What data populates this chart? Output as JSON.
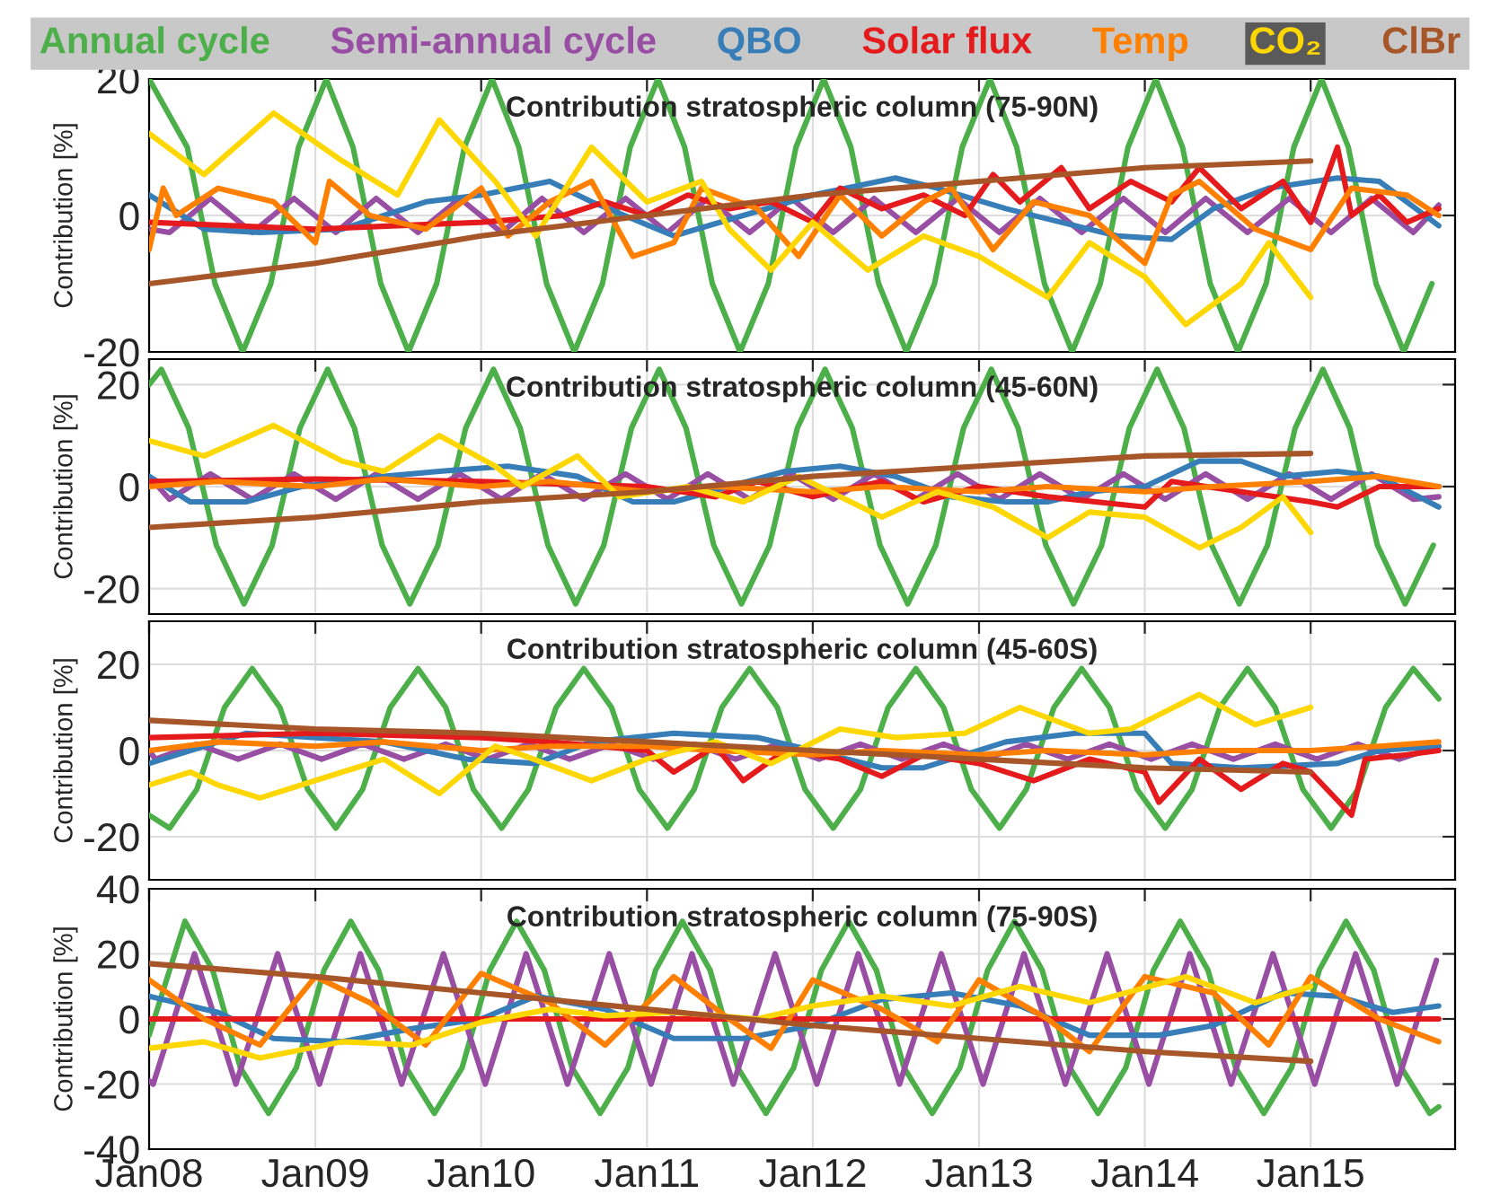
{
  "chart_data": [
    {
      "type": "line",
      "title": "Contribution stratospheric column (75-90N)",
      "ylabel": "Contribution [%]",
      "xlim": [
        "2008-01-01",
        "2015-11-15"
      ],
      "xticks": [
        "2008-01-01",
        "2009-01-01",
        "2010-01-01",
        "2011-01-01",
        "2012-01-01",
        "2013-01-01",
        "2014-01-01",
        "2015-01-01"
      ],
      "ylim": [
        -20,
        20
      ],
      "yticks": [
        -20,
        0,
        20
      ],
      "grid": true,
      "legend": "top",
      "tick_labels": "y",
      "series": [
        {
          "name": "Annual cycle",
          "color": "#4daf4a",
          "x": [
            "2008-01-01",
            "2008-03-25",
            "2008-05-25",
            "2008-07-25",
            "2008-09-25",
            "2008-11-25",
            "2009-01-25",
            "2009-03-25",
            "2009-05-25",
            "2009-07-25",
            "2009-09-25",
            "2009-11-25",
            "2010-01-25",
            "2010-03-25",
            "2010-05-25",
            "2010-07-25",
            "2010-09-25",
            "2010-11-25",
            "2011-01-25",
            "2011-03-25",
            "2011-05-25",
            "2011-07-25",
            "2011-09-25",
            "2011-11-25",
            "2012-01-25",
            "2012-03-25",
            "2012-05-25",
            "2012-07-25",
            "2012-09-25",
            "2012-11-25",
            "2013-01-25",
            "2013-03-25",
            "2013-05-25",
            "2013-07-25",
            "2013-09-25",
            "2013-11-25",
            "2014-01-25",
            "2014-03-25",
            "2014-05-25",
            "2014-07-25",
            "2014-09-25",
            "2014-11-25",
            "2015-01-25",
            "2015-03-25",
            "2015-05-25",
            "2015-07-25",
            "2015-09-25"
          ],
          "values": [
            20,
            10,
            -10,
            -20,
            -10,
            10,
            20,
            10,
            -10,
            -20,
            -10,
            10,
            20,
            10,
            -10,
            -20,
            -10,
            10,
            20,
            10,
            -10,
            -20,
            -10,
            10,
            20,
            10,
            -10,
            -20,
            -10,
            10,
            20,
            10,
            -10,
            -20,
            -10,
            10,
            20,
            10,
            -10,
            -20,
            -10,
            10,
            20,
            10,
            -10,
            -20,
            -10
          ]
        },
        {
          "name": "Semi-annual cycle",
          "color": "#984ea3",
          "x": [
            "2008-01-01",
            "2008-02-15",
            "2008-05-15",
            "2008-08-15",
            "2008-11-15",
            "2009-02-15",
            "2009-05-15",
            "2009-08-15",
            "2009-11-15",
            "2010-02-15",
            "2010-05-15",
            "2010-08-15",
            "2010-11-15",
            "2011-02-15",
            "2011-05-15",
            "2011-08-15",
            "2011-11-15",
            "2012-02-15",
            "2012-05-15",
            "2012-08-15",
            "2012-11-15",
            "2013-02-15",
            "2013-05-15",
            "2013-08-15",
            "2013-11-15",
            "2014-02-15",
            "2014-05-15",
            "2014-08-15",
            "2014-11-15",
            "2015-02-15",
            "2015-05-15",
            "2015-08-15",
            "2015-10-10"
          ],
          "values": [
            -2,
            -2.5,
            2.5,
            -2.5,
            2.5,
            -2.5,
            2.5,
            -2.5,
            2.5,
            -2.5,
            2.5,
            -2.5,
            2.5,
            -2.5,
            2.5,
            -2.5,
            2.5,
            -2.5,
            2.5,
            -2.5,
            2.5,
            -2.5,
            2.5,
            -2.5,
            2.5,
            -2.5,
            2.5,
            -2.5,
            2.5,
            -2.5,
            2.5,
            -2.5,
            1.5
          ]
        },
        {
          "name": "QBO",
          "color": "#377eb8",
          "x": [
            "2008-01-01",
            "2008-05-01",
            "2008-09-01",
            "2009-03-01",
            "2009-06-01",
            "2009-09-01",
            "2010-01-01",
            "2010-06-01",
            "2010-09-01",
            "2011-03-01",
            "2011-08-01",
            "2012-01-01",
            "2012-07-01",
            "2012-10-01",
            "2013-03-01",
            "2013-07-01",
            "2013-11-01",
            "2014-03-01",
            "2014-06-01",
            "2014-10-01",
            "2015-03-01",
            "2015-06-01",
            "2015-10-10"
          ],
          "values": [
            3,
            -2,
            -2.5,
            -2,
            0,
            2,
            3,
            5,
            2,
            -3,
            0,
            3,
            5.5,
            4,
            1,
            -1,
            -3,
            -3.5,
            1,
            4,
            5.5,
            5,
            -1.5
          ]
        },
        {
          "name": "Solar flux",
          "color": "#e41a1c",
          "x": [
            "2008-01-01",
            "2008-07-01",
            "2009-01-01",
            "2009-07-01",
            "2010-01-01",
            "2010-07-01",
            "2010-10-01",
            "2011-01-01",
            "2011-04-01",
            "2011-07-01",
            "2011-10-01",
            "2012-01-01",
            "2012-03-01",
            "2012-06-01",
            "2012-09-01",
            "2012-12-01",
            "2013-02-01",
            "2013-04-01",
            "2013-07-01",
            "2013-09-01",
            "2013-12-01",
            "2014-03-01",
            "2014-05-01",
            "2014-08-01",
            "2014-11-01",
            "2015-01-01",
            "2015-03-01",
            "2015-04-01",
            "2015-06-01",
            "2015-08-01",
            "2015-10-10"
          ],
          "values": [
            -1,
            -1.5,
            -2,
            -1.5,
            -1,
            0,
            2,
            0,
            3,
            1,
            2,
            -1,
            4,
            1,
            3,
            0,
            6,
            2,
            7,
            1,
            5,
            2,
            7,
            1,
            5,
            -1,
            10,
            0,
            3,
            -1,
            1
          ]
        },
        {
          "name": "Temp",
          "color": "#ff7f00",
          "x": [
            "2008-01-01",
            "2008-02-01",
            "2008-03-01",
            "2008-06-01",
            "2008-10-01",
            "2009-01-01",
            "2009-02-01",
            "2009-05-01",
            "2009-09-01",
            "2010-01-01",
            "2010-03-01",
            "2010-06-01",
            "2010-09-01",
            "2010-12-01",
            "2011-03-01",
            "2011-05-01",
            "2011-09-01",
            "2011-12-01",
            "2012-03-01",
            "2012-06-01",
            "2012-09-01",
            "2012-11-01",
            "2013-02-01",
            "2013-05-01",
            "2013-09-01",
            "2014-01-01",
            "2014-03-01",
            "2014-05-01",
            "2014-09-01",
            "2015-01-01",
            "2015-04-01",
            "2015-08-01",
            "2015-10-10"
          ],
          "values": [
            -5,
            4,
            0,
            4,
            2,
            -4,
            5,
            0,
            -2,
            4,
            -3,
            2,
            5,
            -6,
            -4,
            4,
            1,
            -6,
            3,
            -3,
            2,
            4,
            -5,
            2,
            0,
            -7,
            3,
            5,
            -2,
            -5,
            4,
            3,
            0
          ]
        },
        {
          "name": "CO₂",
          "color": "#ffd700",
          "x": [
            "2008-01-01",
            "2008-05-01",
            "2008-10-01",
            "2009-03-01",
            "2009-07-01",
            "2009-10-01",
            "2010-02-01",
            "2010-05-01",
            "2010-09-01",
            "2011-01-01",
            "2011-05-01",
            "2011-07-01",
            "2011-10-01",
            "2012-01-01",
            "2012-05-01",
            "2012-09-01",
            "2013-01-01",
            "2013-06-01",
            "2013-09-01",
            "2014-01-01",
            "2014-04-01",
            "2014-08-01",
            "2014-10-01",
            "2015-01-01"
          ],
          "values": [
            12,
            6,
            15,
            8,
            3,
            14,
            5,
            -3,
            10,
            2,
            5,
            -2,
            -8,
            -1,
            -8,
            -3,
            -6,
            -12,
            -4,
            -9,
            -16,
            -10,
            -4,
            -12
          ]
        },
        {
          "name": "ClBr",
          "color": "#a65628",
          "x": [
            "2008-01-01",
            "2009-01-01",
            "2010-01-01",
            "2011-01-01",
            "2012-01-01",
            "2013-01-01",
            "2014-01-01",
            "2015-01-01"
          ],
          "values": [
            -10,
            -7,
            -3,
            0,
            3,
            5,
            7,
            8
          ]
        }
      ]
    },
    {
      "type": "line",
      "title": "Contribution stratospheric column (45-60N)",
      "ylabel": "Contribution [%]",
      "xlim": [
        "2008-01-01",
        "2015-11-15"
      ],
      "xticks": [
        "2008-01-01",
        "2009-01-01",
        "2010-01-01",
        "2011-01-01",
        "2012-01-01",
        "2013-01-01",
        "2014-01-01",
        "2015-01-01"
      ],
      "ylim": [
        -25,
        25
      ],
      "yticks": [
        -20,
        0,
        20
      ],
      "grid": true,
      "tick_labels": "y",
      "series": [
        {
          "color": "#4daf4a",
          "x": [
            "2008-01-01",
            "2008-01-28",
            "2008-03-28",
            "2008-05-28",
            "2008-07-28",
            "2008-09-28",
            "2008-11-28",
            "2009-01-28",
            "2009-03-28",
            "2009-05-28",
            "2009-07-28",
            "2009-09-28",
            "2009-11-28",
            "2010-01-28",
            "2010-03-28",
            "2010-05-28",
            "2010-07-28",
            "2010-09-28",
            "2010-11-28",
            "2011-01-28",
            "2011-03-28",
            "2011-05-28",
            "2011-07-28",
            "2011-09-28",
            "2011-11-28",
            "2012-01-28",
            "2012-03-28",
            "2012-05-28",
            "2012-07-28",
            "2012-09-28",
            "2012-11-28",
            "2013-01-28",
            "2013-03-28",
            "2013-05-28",
            "2013-07-28",
            "2013-09-28",
            "2013-11-28",
            "2014-01-28",
            "2014-03-28",
            "2014-05-28",
            "2014-07-28",
            "2014-09-28",
            "2014-11-28",
            "2015-01-28",
            "2015-03-28",
            "2015-05-28",
            "2015-07-28",
            "2015-09-28"
          ],
          "values": [
            20,
            23,
            11.5,
            -11.5,
            -23,
            -11.5,
            11.5,
            23,
            11.5,
            -11.5,
            -23,
            -11.5,
            11.5,
            23,
            11.5,
            -11.5,
            -23,
            -11.5,
            11.5,
            23,
            11.5,
            -11.5,
            -23,
            -11.5,
            11.5,
            23,
            11.5,
            -11.5,
            -23,
            -11.5,
            11.5,
            23,
            11.5,
            -11.5,
            -23,
            -11.5,
            11.5,
            23,
            11.5,
            -11.5,
            -23,
            -11.5,
            11.5,
            23,
            11.5,
            -11.5,
            -23,
            -11.5
          ]
        },
        {
          "color": "#984ea3",
          "x": [
            "2008-01-01",
            "2008-02-15",
            "2008-05-15",
            "2008-08-15",
            "2008-11-15",
            "2009-02-15",
            "2009-05-15",
            "2009-08-15",
            "2009-11-15",
            "2010-02-15",
            "2010-05-15",
            "2010-08-15",
            "2010-11-15",
            "2011-02-15",
            "2011-05-15",
            "2011-08-15",
            "2011-11-15",
            "2012-02-15",
            "2012-05-15",
            "2012-08-15",
            "2012-11-15",
            "2013-02-15",
            "2013-05-15",
            "2013-08-15",
            "2013-11-15",
            "2014-02-15",
            "2014-05-15",
            "2014-08-15",
            "2014-11-15",
            "2015-02-15",
            "2015-05-15",
            "2015-08-15",
            "2015-10-10"
          ],
          "values": [
            2,
            -2.5,
            2.5,
            -2.5,
            2.5,
            -2.5,
            2.5,
            -2.5,
            2.5,
            -2.5,
            2.5,
            -2.5,
            2.5,
            -2.5,
            2.5,
            -2.5,
            2.5,
            -2.5,
            2.5,
            -2.5,
            2.5,
            -2.5,
            2.5,
            -2.5,
            2.5,
            -2.5,
            2.5,
            -2.5,
            2.5,
            -2.5,
            2.5,
            -2.5,
            -2
          ]
        },
        {
          "color": "#377eb8",
          "x": [
            "2008-01-01",
            "2008-04-01",
            "2008-08-01",
            "2008-12-01",
            "2009-06-01",
            "2009-10-01",
            "2010-03-01",
            "2010-08-01",
            "2010-12-01",
            "2011-03-01",
            "2011-07-01",
            "2011-11-01",
            "2012-03-01",
            "2012-07-01",
            "2012-11-01",
            "2013-03-01",
            "2013-06-01",
            "2013-09-01",
            "2014-01-01",
            "2014-05-01",
            "2014-08-01",
            "2014-11-01",
            "2015-03-01",
            "2015-06-01",
            "2015-10-10"
          ],
          "values": [
            2,
            -3,
            -3,
            0,
            2,
            3,
            4,
            2,
            -3,
            -3,
            0,
            3,
            4,
            2,
            -2,
            -3,
            -3,
            -1,
            0,
            5,
            5,
            2,
            3,
            2,
            -4
          ]
        },
        {
          "color": "#e41a1c",
          "x": [
            "2008-01-01",
            "2009-01-01",
            "2010-01-01",
            "2011-01-01",
            "2011-06-01",
            "2011-09-01",
            "2012-01-01",
            "2012-06-01",
            "2012-09-01",
            "2013-01-01",
            "2013-06-01",
            "2014-01-01",
            "2014-03-01",
            "2014-08-01",
            "2015-01-01",
            "2015-03-01",
            "2015-06-01",
            "2015-10-10"
          ],
          "values": [
            1,
            1.5,
            1,
            0,
            -2,
            1,
            -2,
            1,
            -3,
            0,
            -2,
            -4,
            1,
            -1,
            -3,
            -4,
            0,
            0
          ]
        },
        {
          "color": "#ff7f00",
          "x": [
            "2008-01-01",
            "2008-06-01",
            "2009-01-01",
            "2009-06-01",
            "2010-01-01",
            "2010-06-01",
            "2011-01-01",
            "2011-06-01",
            "2012-01-01",
            "2012-06-01",
            "2013-01-01",
            "2013-06-01",
            "2014-01-01",
            "2014-06-01",
            "2015-01-01",
            "2015-06-01",
            "2015-10-10"
          ],
          "values": [
            0,
            1,
            0,
            1.5,
            0,
            1,
            -1,
            0,
            -1,
            0,
            -1,
            0,
            -1,
            0,
            1,
            2,
            0
          ]
        },
        {
          "color": "#ffd700",
          "x": [
            "2008-01-01",
            "2008-05-01",
            "2008-10-01",
            "2009-03-01",
            "2009-06-01",
            "2009-10-01",
            "2010-02-01",
            "2010-04-01",
            "2010-08-01",
            "2010-11-01",
            "2011-04-01",
            "2011-08-01",
            "2011-12-01",
            "2012-03-01",
            "2012-06-01",
            "2012-10-01",
            "2013-02-01",
            "2013-06-01",
            "2013-09-01",
            "2014-01-01",
            "2014-05-01",
            "2014-08-01",
            "2014-11-01",
            "2015-01-01"
          ],
          "values": [
            9,
            6,
            12,
            5,
            3,
            10,
            4,
            0,
            6,
            -2,
            0,
            -3,
            2,
            -2,
            -6,
            -1,
            -4,
            -10,
            -5,
            -6,
            -12,
            -8,
            -2,
            -9
          ]
        },
        {
          "color": "#a65628",
          "x": [
            "2008-01-01",
            "2009-01-01",
            "2010-01-01",
            "2011-01-01",
            "2012-01-01",
            "2013-01-01",
            "2014-01-01",
            "2015-01-01"
          ],
          "values": [
            -8,
            -6,
            -3,
            -1,
            2,
            4,
            6,
            6.5
          ]
        }
      ]
    },
    {
      "type": "line",
      "title": "Contribution stratospheric column (45-60S)",
      "ylabel": "Contribution [%]",
      "xlim": [
        "2008-01-01",
        "2015-11-15"
      ],
      "xticks": [
        "2008-01-01",
        "2009-01-01",
        "2010-01-01",
        "2011-01-01",
        "2012-01-01",
        "2013-01-01",
        "2014-01-01",
        "2015-01-01"
      ],
      "ylim": [
        -30,
        30
      ],
      "yticks": [
        -20,
        0,
        20
      ],
      "grid": true,
      "tick_labels": "y",
      "series": [
        {
          "color": "#4daf4a",
          "x": [
            "2008-01-01",
            "2008-02-15",
            "2008-04-15",
            "2008-06-15",
            "2008-08-15",
            "2008-10-15",
            "2008-12-15",
            "2009-02-15",
            "2009-04-15",
            "2009-06-15",
            "2009-08-15",
            "2009-10-15",
            "2009-12-15",
            "2010-02-15",
            "2010-04-15",
            "2010-06-15",
            "2010-08-15",
            "2010-10-15",
            "2010-12-15",
            "2011-02-15",
            "2011-04-15",
            "2011-06-15",
            "2011-08-15",
            "2011-10-15",
            "2011-12-15",
            "2012-02-15",
            "2012-04-15",
            "2012-06-15",
            "2012-08-15",
            "2012-10-15",
            "2012-12-15",
            "2013-02-15",
            "2013-04-15",
            "2013-06-15",
            "2013-08-15",
            "2013-10-15",
            "2013-12-15",
            "2014-02-15",
            "2014-04-15",
            "2014-06-15",
            "2014-08-15",
            "2014-10-15",
            "2014-12-15",
            "2015-02-15",
            "2015-04-15",
            "2015-06-15",
            "2015-08-15",
            "2015-10-10"
          ],
          "values": [
            -15,
            -18,
            -9,
            10,
            19,
            10,
            -9,
            -18,
            -9,
            10,
            19,
            10,
            -9,
            -18,
            -9,
            10,
            19,
            10,
            -9,
            -18,
            -9,
            10,
            19,
            10,
            -9,
            -18,
            -9,
            10,
            19,
            10,
            -9,
            -18,
            -9,
            10,
            19,
            10,
            -9,
            -18,
            -9,
            10,
            19,
            10,
            -9,
            -18,
            -9,
            10,
            19,
            12
          ]
        },
        {
          "color": "#984ea3",
          "x": [
            "2008-01-01",
            "2008-01-15",
            "2008-04-15",
            "2008-07-15",
            "2008-10-15",
            "2009-01-15",
            "2009-04-15",
            "2009-07-15",
            "2009-10-15",
            "2010-01-15",
            "2010-04-15",
            "2010-07-15",
            "2010-10-15",
            "2011-01-15",
            "2011-04-15",
            "2011-07-15",
            "2011-10-15",
            "2012-01-15",
            "2012-04-15",
            "2012-07-15",
            "2012-10-15",
            "2013-01-15",
            "2013-04-15",
            "2013-07-15",
            "2013-10-15",
            "2014-01-15",
            "2014-04-15",
            "2014-07-15",
            "2014-10-15",
            "2015-01-15",
            "2015-04-15",
            "2015-07-15",
            "2015-10-10"
          ],
          "values": [
            0,
            -2,
            1.5,
            -2,
            1.5,
            -2,
            1.5,
            -2,
            1.5,
            -2,
            1.5,
            -2,
            1.5,
            -2,
            1.5,
            -2,
            1.5,
            -2,
            1.5,
            -2,
            1.5,
            -2,
            1.5,
            -2,
            1.5,
            -2,
            1.5,
            -2,
            1.5,
            -2,
            1.5,
            -2,
            1
          ]
        },
        {
          "color": "#377eb8",
          "x": [
            "2008-01-01",
            "2008-08-01",
            "2009-06-01",
            "2009-12-01",
            "2010-05-01",
            "2010-09-01",
            "2011-03-01",
            "2011-09-01",
            "2012-01-01",
            "2012-06-01",
            "2012-09-01",
            "2013-03-01",
            "2013-08-01",
            "2014-01-01",
            "2014-03-01",
            "2014-08-01",
            "2015-03-01",
            "2015-06-01",
            "2015-10-10"
          ],
          "values": [
            -3,
            4,
            2,
            -2,
            -3,
            2,
            4,
            3,
            0,
            -4,
            -4,
            2,
            4,
            4,
            -3,
            -4,
            -3,
            0,
            1
          ]
        },
        {
          "color": "#e41a1c",
          "x": [
            "2008-01-01",
            "2009-01-01",
            "2010-01-01",
            "2010-06-01",
            "2011-01-01",
            "2011-03-01",
            "2011-06-01",
            "2011-08-01",
            "2011-11-01",
            "2012-03-01",
            "2012-06-01",
            "2012-09-01",
            "2013-01-01",
            "2013-05-01",
            "2013-09-01",
            "2014-01-01",
            "2014-02-01",
            "2014-05-01",
            "2014-08-01",
            "2014-11-01",
            "2015-01-01",
            "2015-04-01",
            "2015-05-01",
            "2015-08-01",
            "2015-10-10"
          ],
          "values": [
            3,
            4,
            3,
            2,
            0,
            -5,
            1,
            -7,
            0,
            -2,
            -6,
            -1,
            -3,
            -7,
            -2,
            -5,
            -12,
            -2,
            -9,
            -3,
            -5,
            -15,
            -2,
            -1,
            0
          ]
        },
        {
          "color": "#ff7f00",
          "x": [
            "2008-01-01",
            "2008-06-01",
            "2009-01-01",
            "2009-06-01",
            "2010-01-01",
            "2010-06-01",
            "2011-01-01",
            "2011-06-01",
            "2012-01-01",
            "2012-06-01",
            "2013-01-01",
            "2013-06-01",
            "2014-01-01",
            "2014-06-01",
            "2015-01-01",
            "2015-06-01",
            "2015-10-10"
          ],
          "values": [
            0,
            2,
            1,
            2,
            0,
            1,
            1,
            0,
            -1,
            0,
            -1,
            0,
            -1,
            0,
            0,
            1,
            2
          ]
        },
        {
          "color": "#ffd700",
          "x": [
            "2008-01-01",
            "2008-04-01",
            "2008-06-01",
            "2008-09-01",
            "2009-03-01",
            "2009-06-01",
            "2009-10-01",
            "2010-02-01",
            "2010-04-01",
            "2010-09-01",
            "2011-01-01",
            "2011-06-01",
            "2011-10-01",
            "2012-03-01",
            "2012-07-01",
            "2012-12-01",
            "2013-04-01",
            "2013-09-01",
            "2013-12-01",
            "2014-05-01",
            "2014-09-01",
            "2015-01-01"
          ],
          "values": [
            -8,
            -5,
            -8,
            -11,
            -5,
            -2,
            -10,
            1,
            -1,
            -7,
            -2,
            2,
            -3,
            5,
            3,
            4,
            10,
            4,
            5,
            13,
            6,
            10
          ]
        },
        {
          "color": "#a65628",
          "x": [
            "2008-01-01",
            "2009-01-01",
            "2010-01-01",
            "2011-01-01",
            "2012-01-01",
            "2013-01-01",
            "2014-01-01",
            "2015-01-01"
          ],
          "values": [
            7,
            5,
            4,
            2,
            0,
            -2,
            -4,
            -5
          ]
        }
      ]
    },
    {
      "type": "line",
      "title": "Contribution stratospheric column (75-90S)",
      "ylabel": "Contribution [%]",
      "xlim": [
        "2008-01-01",
        "2015-11-15"
      ],
      "xticks": [
        {
          "value": "2008-01-01",
          "label": "Jan08"
        },
        {
          "value": "2009-01-01",
          "label": "Jan09"
        },
        {
          "value": "2010-01-01",
          "label": "Jan10"
        },
        {
          "value": "2011-01-01",
          "label": "Jan11"
        },
        {
          "value": "2012-01-01",
          "label": "Jan12"
        },
        {
          "value": "2013-01-01",
          "label": "Jan13"
        },
        {
          "value": "2014-01-01",
          "label": "Jan14"
        },
        {
          "value": "2015-01-01",
          "label": "Jan15"
        }
      ],
      "ylim": [
        -40,
        40
      ],
      "yticks": [
        -40,
        -20,
        0,
        20,
        40
      ],
      "grid": true,
      "series": [
        {
          "color": "#4daf4a",
          "x": [
            "2008-01-01",
            "2008-03-20",
            "2008-05-20",
            "2008-07-20",
            "2008-09-20",
            "2008-11-20",
            "2009-01-20",
            "2009-03-20",
            "2009-05-20",
            "2009-07-20",
            "2009-09-20",
            "2009-11-20",
            "2010-01-20",
            "2010-03-20",
            "2010-05-20",
            "2010-07-20",
            "2010-09-20",
            "2010-11-20",
            "2011-01-20",
            "2011-03-20",
            "2011-05-20",
            "2011-07-20",
            "2011-09-20",
            "2011-11-20",
            "2012-01-20",
            "2012-03-20",
            "2012-05-20",
            "2012-07-20",
            "2012-09-20",
            "2012-11-20",
            "2013-01-20",
            "2013-03-20",
            "2013-05-20",
            "2013-07-20",
            "2013-09-20",
            "2013-11-20",
            "2014-01-20",
            "2014-03-20",
            "2014-05-20",
            "2014-07-20",
            "2014-09-20",
            "2014-11-20",
            "2015-01-20",
            "2015-03-20",
            "2015-05-20",
            "2015-07-20",
            "2015-09-20",
            "2015-10-10"
          ],
          "values": [
            -5,
            30,
            15,
            -15,
            -29,
            -15,
            15,
            30,
            15,
            -15,
            -29,
            -15,
            15,
            30,
            15,
            -15,
            -29,
            -15,
            15,
            30,
            15,
            -15,
            -29,
            -15,
            15,
            30,
            15,
            -15,
            -29,
            -15,
            15,
            30,
            15,
            -15,
            -29,
            -15,
            15,
            30,
            15,
            -15,
            -29,
            -15,
            15,
            30,
            15,
            -15,
            -29,
            -27
          ]
        },
        {
          "color": "#984ea3",
          "x": [
            "2008-01-01",
            "2008-01-10",
            "2008-04-10",
            "2008-07-10",
            "2008-10-10",
            "2009-01-10",
            "2009-04-10",
            "2009-07-10",
            "2009-10-10",
            "2010-01-10",
            "2010-04-10",
            "2010-07-10",
            "2010-10-10",
            "2011-01-10",
            "2011-04-10",
            "2011-07-10",
            "2011-10-10",
            "2012-01-10",
            "2012-04-10",
            "2012-07-10",
            "2012-10-10",
            "2013-01-10",
            "2013-04-10",
            "2013-07-10",
            "2013-10-10",
            "2014-01-10",
            "2014-04-10",
            "2014-07-10",
            "2014-10-10",
            "2015-01-10",
            "2015-04-10",
            "2015-07-10",
            "2015-10-05"
          ],
          "values": [
            -19,
            -20,
            20,
            -20,
            20,
            -20,
            20,
            -20,
            20,
            -20,
            20,
            -20,
            20,
            -20,
            20,
            -20,
            20,
            -20,
            20,
            -20,
            20,
            -20,
            20,
            -20,
            20,
            -20,
            20,
            -20,
            20,
            -20,
            20,
            -20,
            18
          ]
        },
        {
          "color": "#377eb8",
          "x": [
            "2008-01-01",
            "2008-06-01",
            "2008-10-01",
            "2009-03-01",
            "2009-08-01",
            "2010-01-01",
            "2010-05-01",
            "2010-10-01",
            "2011-03-01",
            "2011-08-01",
            "2012-01-01",
            "2012-06-01",
            "2012-11-01",
            "2013-04-01",
            "2013-09-01",
            "2014-02-01",
            "2014-06-01",
            "2014-11-01",
            "2015-03-01",
            "2015-07-01",
            "2015-10-10"
          ],
          "values": [
            7,
            2,
            -6,
            -7,
            -3,
            0,
            7,
            3,
            -6,
            -6,
            -2,
            6,
            8,
            4,
            -5,
            -5,
            -2,
            8,
            7,
            2,
            4
          ]
        },
        {
          "color": "#e41a1c",
          "x": [
            "2008-01-01",
            "2015-10-10"
          ],
          "values": [
            0,
            0
          ]
        },
        {
          "color": "#ff7f00",
          "x": [
            "2008-01-01",
            "2008-05-01",
            "2008-09-01",
            "2009-01-01",
            "2009-05-01",
            "2009-09-01",
            "2010-01-01",
            "2010-06-01",
            "2010-10-01",
            "2011-03-01",
            "2011-07-01",
            "2011-10-01",
            "2012-01-01",
            "2012-06-01",
            "2012-10-01",
            "2013-01-01",
            "2013-06-01",
            "2013-09-01",
            "2014-01-01",
            "2014-06-01",
            "2014-10-01",
            "2015-01-01",
            "2015-06-01",
            "2015-10-10"
          ],
          "values": [
            12,
            0,
            -8,
            13,
            5,
            -8,
            14,
            5,
            -8,
            13,
            0,
            -9,
            12,
            3,
            -7,
            12,
            0,
            -10,
            13,
            8,
            -8,
            13,
            0,
            -7
          ]
        },
        {
          "color": "#ffd700",
          "x": [
            "2008-01-01",
            "2008-05-01",
            "2008-09-01",
            "2009-03-01",
            "2009-08-01",
            "2010-01-01",
            "2010-06-01",
            "2010-10-01",
            "2011-03-01",
            "2011-09-01",
            "2012-01-01",
            "2012-06-01",
            "2012-11-01",
            "2013-04-01",
            "2013-09-01",
            "2014-04-01",
            "2014-09-01",
            "2015-01-01"
          ],
          "values": [
            -9,
            -7,
            -12,
            -7,
            -8,
            -1,
            3,
            1,
            2,
            0,
            4,
            7,
            4,
            10,
            5,
            13,
            5,
            10
          ]
        },
        {
          "color": "#a65628",
          "x": [
            "2008-01-01",
            "2009-01-01",
            "2010-01-01",
            "2011-01-01",
            "2012-01-01",
            "2013-01-01",
            "2014-01-01",
            "2015-01-01"
          ],
          "values": [
            17,
            13,
            8,
            3,
            -2,
            -6,
            -10,
            -13
          ]
        }
      ]
    }
  ]
}
